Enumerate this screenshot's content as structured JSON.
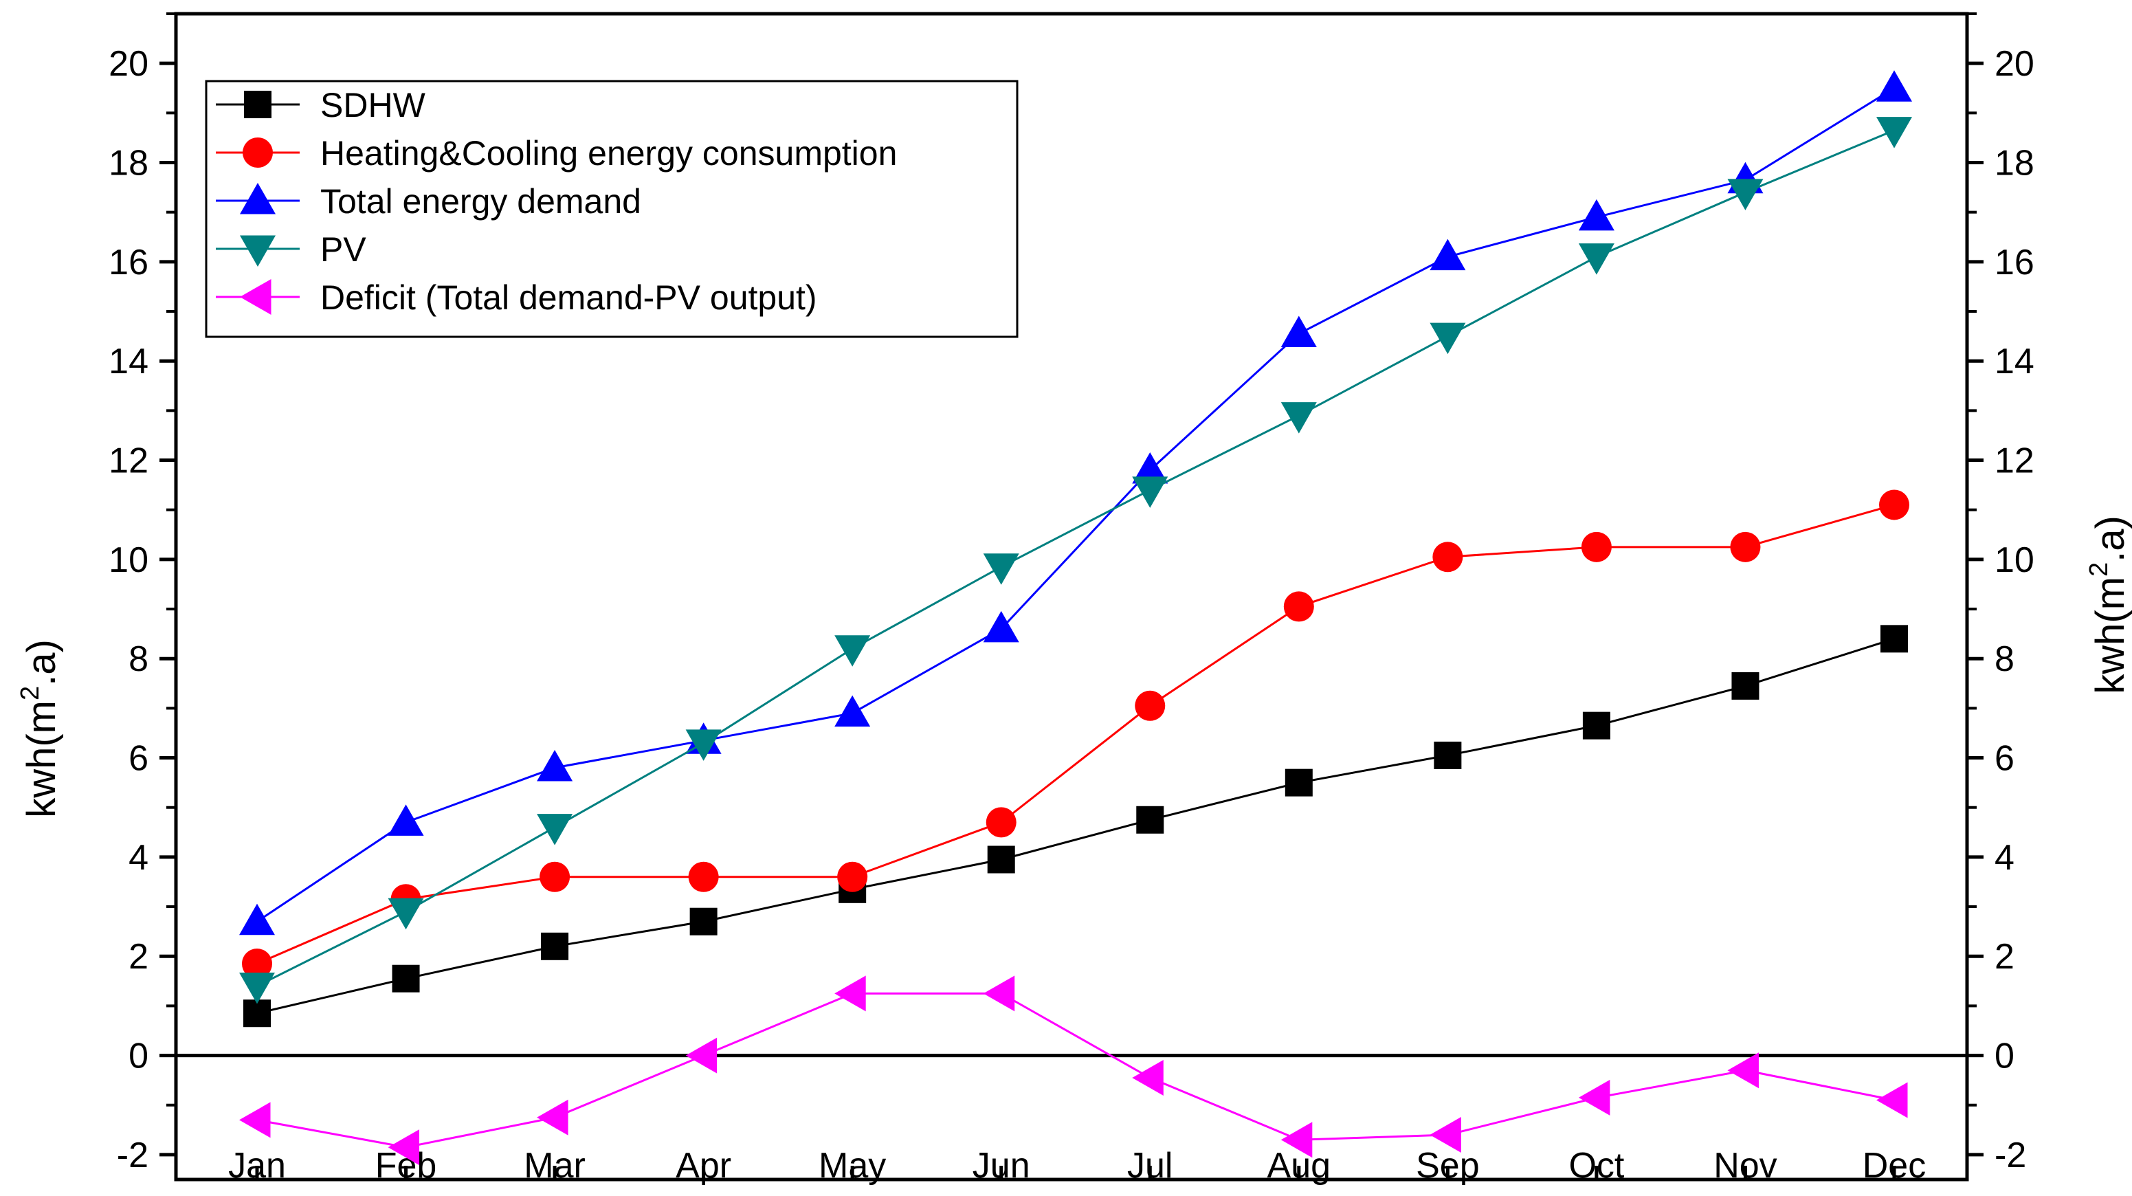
{
  "chart_data": {
    "type": "line",
    "title": "",
    "xlabel": "",
    "ylabel": "kwh(m",
    "ylabel_sup": "2",
    "ylabel_suffix": ".a)",
    "ylim": [
      -2.5,
      21
    ],
    "yticks": [
      "-2",
      "0",
      "2",
      "4",
      "6",
      "8",
      "10",
      "12",
      "14",
      "16",
      "18",
      "20"
    ],
    "ytick_values": [
      -2,
      0,
      2,
      4,
      6,
      8,
      10,
      12,
      14,
      16,
      18,
      20
    ],
    "zero_line": true,
    "legend_position": "top-left",
    "categories": [
      "Jan",
      "Feb",
      "Mar",
      "Apr",
      "May",
      "Jun",
      "Jul",
      "Aug",
      "Sep",
      "Oct",
      "Nov",
      "Dec"
    ],
    "series": [
      {
        "name": "SDHW",
        "color": "#000000",
        "marker": "square",
        "values": [
          0.85,
          1.55,
          2.2,
          2.7,
          3.35,
          3.95,
          4.75,
          5.5,
          6.05,
          6.65,
          7.45,
          8.4
        ]
      },
      {
        "name": "Heating&Cooling energy consumption",
        "color": "#ff0000",
        "marker": "circle",
        "values": [
          1.85,
          3.15,
          3.6,
          3.6,
          3.6,
          4.7,
          7.05,
          9.05,
          10.05,
          10.25,
          10.25,
          11.1
        ]
      },
      {
        "name": "Total energy demand",
        "color": "#0000ff",
        "marker": "triangle-up",
        "values": [
          2.7,
          4.7,
          5.8,
          6.35,
          6.9,
          8.6,
          11.8,
          14.55,
          16.1,
          16.9,
          17.65,
          19.5
        ]
      },
      {
        "name": "PV",
        "color": "#008080",
        "marker": "triangle-down",
        "values": [
          1.4,
          2.9,
          4.6,
          6.3,
          8.2,
          9.85,
          11.4,
          12.9,
          14.5,
          16.1,
          17.4,
          18.65
        ]
      },
      {
        "name": "Deficit (Total demand-PV output)",
        "color": "#ff00ff",
        "marker": "triangle-left",
        "values": [
          -1.3,
          -1.85,
          -1.25,
          0.0,
          1.25,
          1.25,
          -0.45,
          -1.7,
          -1.6,
          -0.85,
          -0.3,
          -0.9
        ]
      }
    ]
  }
}
